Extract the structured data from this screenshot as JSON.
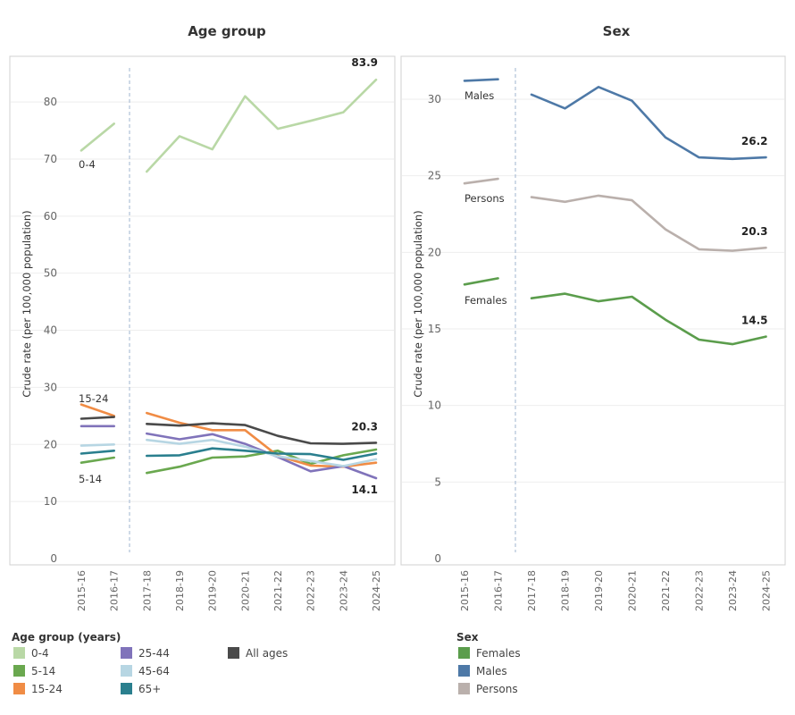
{
  "chart_data": [
    {
      "type": "line",
      "title": "Age group",
      "ylabel": "Crude rate (per 100,000 population)",
      "xlabel": "",
      "ylim": [
        0,
        88
      ],
      "yticks": [
        0,
        10,
        20,
        30,
        40,
        50,
        60,
        70,
        80
      ],
      "x": [
        "2015-16",
        "2016-17",
        "2017-18",
        "2018-19",
        "2019-20",
        "2020-21",
        "2021-22",
        "2022-23",
        "2023-24",
        "2024-25"
      ],
      "break_after": "2016-17",
      "legend_title": "Age group (years)",
      "series": [
        {
          "name": "0-4",
          "color": "#b9d8a6",
          "values": [
            71.5,
            76.2,
            67.8,
            74.0,
            71.7,
            81.0,
            75.3,
            76.7,
            78.2,
            83.9
          ],
          "label": "0-4",
          "end_label": "83.9"
        },
        {
          "name": "5-14",
          "color": "#6aa84f",
          "values": [
            16.8,
            17.7,
            15.0,
            16.1,
            17.7,
            17.9,
            18.9,
            16.6,
            18.1,
            19.1
          ],
          "label": "5-14"
        },
        {
          "name": "15-24",
          "color": "#f08c45",
          "values": [
            27.0,
            25.0,
            25.5,
            23.8,
            22.5,
            22.5,
            18.0,
            16.3,
            16.1,
            16.8
          ],
          "label": "15-24"
        },
        {
          "name": "25-44",
          "color": "#8073ba",
          "values": [
            23.2,
            23.2,
            21.9,
            20.9,
            21.8,
            20.1,
            17.8,
            15.3,
            16.2,
            14.1
          ],
          "end_label": "14.1"
        },
        {
          "name": "45-64",
          "color": "#b7d6e3",
          "values": [
            19.8,
            20.0,
            20.8,
            20.1,
            20.8,
            19.6,
            17.9,
            17.1,
            16.2,
            17.4
          ]
        },
        {
          "name": "65+",
          "color": "#2a7f8e",
          "values": [
            18.4,
            18.9,
            18.0,
            18.1,
            19.3,
            18.9,
            18.4,
            18.3,
            17.3,
            18.4
          ]
        },
        {
          "name": "All ages",
          "color": "#4a4a4a",
          "values": [
            24.5,
            24.8,
            23.6,
            23.3,
            23.7,
            23.4,
            21.5,
            20.2,
            20.1,
            20.3
          ],
          "end_label": "20.3"
        }
      ]
    },
    {
      "type": "line",
      "title": "Sex",
      "ylabel": "Crude rate (per 100,000 population)",
      "xlabel": "",
      "ylim": [
        0,
        32.8
      ],
      "yticks": [
        0,
        5,
        10,
        15,
        20,
        25,
        30
      ],
      "x": [
        "2015-16",
        "2016-17",
        "2017-18",
        "2018-19",
        "2019-20",
        "2020-21",
        "2021-22",
        "2022-23",
        "2023-24",
        "2024-25"
      ],
      "break_after": "2016-17",
      "legend_title": "Sex",
      "series": [
        {
          "name": "Females",
          "color": "#5b9d4c",
          "values": [
            17.9,
            18.3,
            17.0,
            17.3,
            16.8,
            17.1,
            15.6,
            14.3,
            14.0,
            14.5
          ],
          "label": "Females",
          "end_label": "14.5"
        },
        {
          "name": "Males",
          "color": "#4e79a7",
          "values": [
            31.2,
            31.3,
            30.3,
            29.4,
            30.8,
            29.9,
            27.5,
            26.2,
            26.1,
            26.2
          ],
          "label": "Males",
          "end_label": "26.2"
        },
        {
          "name": "Persons",
          "color": "#bab0ac",
          "values": [
            24.5,
            24.8,
            23.6,
            23.3,
            23.7,
            23.4,
            21.5,
            20.2,
            20.1,
            20.3
          ],
          "label": "Persons",
          "end_label": "20.3"
        }
      ]
    }
  ]
}
